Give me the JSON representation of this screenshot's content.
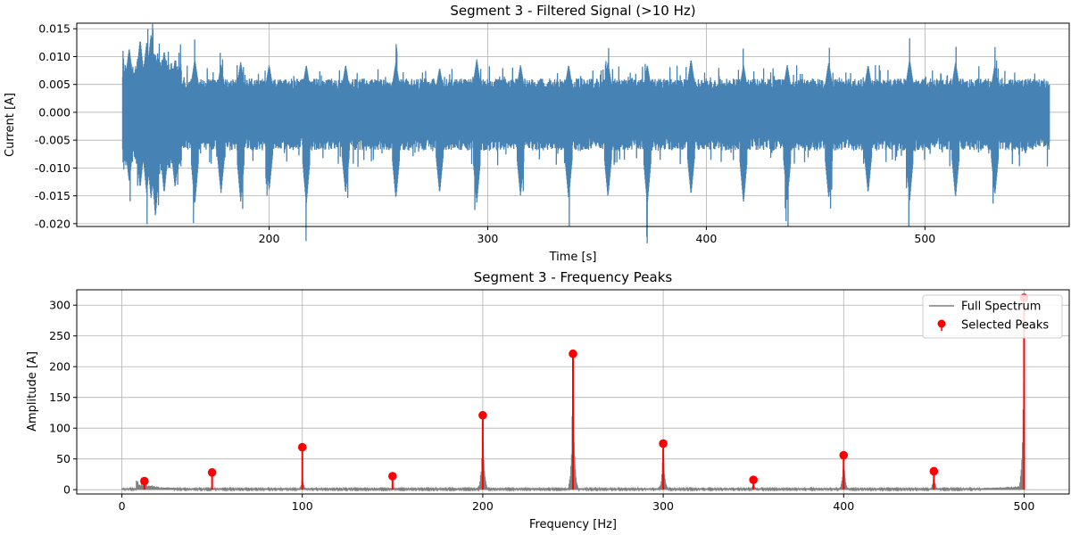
{
  "chart_data": [
    {
      "type": "line",
      "title": "Segment 3 - Filtered Signal (>10 Hz)",
      "xlabel": "Time [s]",
      "ylabel": "Current [A]",
      "xlim": [
        112,
        566
      ],
      "ylim": [
        -0.0205,
        0.016
      ],
      "xticks": [
        200,
        300,
        400,
        500
      ],
      "yticks": [
        -0.02,
        -0.015,
        -0.01,
        -0.005,
        0.0,
        0.005,
        0.01,
        0.015
      ],
      "xtick_labels": [
        "200",
        "300",
        "400",
        "500"
      ],
      "ytick_labels": [
        "-0.020",
        "-0.015",
        "-0.010",
        "-0.005",
        "0.000",
        "0.005",
        "0.010",
        "0.015"
      ],
      "grid": true,
      "series": [
        {
          "color": "#4682b4",
          "x_range": [
            133,
            557
          ],
          "typical_amplitude": 0.0055,
          "burst_peaks": [
            {
              "x": 136,
              "max": 0.0115,
              "min": -0.0125
            },
            {
              "x": 141,
              "max": 0.013,
              "min": -0.0135
            },
            {
              "x": 144,
              "max": 0.0125,
              "min": -0.0145
            },
            {
              "x": 146,
              "max": 0.014,
              "min": -0.0155
            },
            {
              "x": 148,
              "max": 0.0105,
              "min": -0.0188
            },
            {
              "x": 152,
              "max": 0.011,
              "min": -0.0145
            },
            {
              "x": 157,
              "max": 0.0095,
              "min": -0.0135
            },
            {
              "x": 166,
              "max": 0.0095,
              "min": -0.0165
            },
            {
              "x": 178,
              "max": 0.0085,
              "min": -0.0145
            },
            {
              "x": 187,
              "max": 0.009,
              "min": -0.016
            },
            {
              "x": 200,
              "max": 0.0085,
              "min": -0.014
            },
            {
              "x": 217,
              "max": 0.0085,
              "min": -0.0165
            },
            {
              "x": 235,
              "max": 0.0085,
              "min": -0.0145
            },
            {
              "x": 258,
              "max": 0.009,
              "min": -0.0155
            },
            {
              "x": 278,
              "max": 0.008,
              "min": -0.0145
            },
            {
              "x": 295,
              "max": 0.0095,
              "min": -0.0162
            },
            {
              "x": 315,
              "max": 0.0085,
              "min": -0.015
            },
            {
              "x": 337,
              "max": 0.0085,
              "min": -0.0155
            },
            {
              "x": 355,
              "max": 0.009,
              "min": -0.0152
            },
            {
              "x": 373,
              "max": 0.0085,
              "min": -0.0165
            },
            {
              "x": 393,
              "max": 0.0095,
              "min": -0.0148
            },
            {
              "x": 417,
              "max": 0.0085,
              "min": -0.0162
            },
            {
              "x": 437,
              "max": 0.0085,
              "min": -0.0158
            },
            {
              "x": 456,
              "max": 0.009,
              "min": -0.0155
            },
            {
              "x": 474,
              "max": 0.0085,
              "min": -0.0145
            },
            {
              "x": 493,
              "max": 0.0095,
              "min": -0.0158
            },
            {
              "x": 514,
              "max": 0.009,
              "min": -0.0153
            },
            {
              "x": 532,
              "max": 0.0085,
              "min": -0.0148
            },
            {
              "x": 546,
              "max": 0.006,
              "min": -0.0075
            }
          ]
        }
      ]
    },
    {
      "type": "line",
      "title": "Segment 3 - Frequency Peaks",
      "xlabel": "Frequency [Hz]",
      "ylabel": "Amplitude [A]",
      "xlim": [
        -25,
        525
      ],
      "ylim": [
        -7,
        325
      ],
      "xticks": [
        0,
        100,
        200,
        300,
        400,
        500
      ],
      "yticks": [
        0,
        50,
        100,
        150,
        200,
        250,
        300
      ],
      "xtick_labels": [
        "0",
        "100",
        "200",
        "300",
        "400",
        "500"
      ],
      "ytick_labels": [
        "0",
        "50",
        "100",
        "150",
        "200",
        "250",
        "300"
      ],
      "grid": true,
      "legend_position": "top-right",
      "series": [
        {
          "name": "Full Spectrum",
          "color": "#808080",
          "peaks": [
            {
              "x": 12.5,
              "y": 14
            },
            {
              "x": 50,
              "y": 6
            },
            {
              "x": 100,
              "y": 22
            },
            {
              "x": 150,
              "y": 5
            },
            {
              "x": 200,
              "y": 120
            },
            {
              "x": 250,
              "y": 220
            },
            {
              "x": 300,
              "y": 75
            },
            {
              "x": 350,
              "y": 12
            },
            {
              "x": 400,
              "y": 56
            },
            {
              "x": 450,
              "y": 28
            },
            {
              "x": 500,
              "y": 312
            }
          ]
        },
        {
          "name": "Selected Peaks",
          "color": "#ff0000",
          "x": [
            12.5,
            50,
            100,
            150,
            200,
            250,
            300,
            350,
            400,
            450,
            500
          ],
          "y": [
            14,
            28,
            69,
            22,
            121,
            221,
            75,
            16,
            56,
            30,
            312
          ]
        }
      ]
    }
  ]
}
